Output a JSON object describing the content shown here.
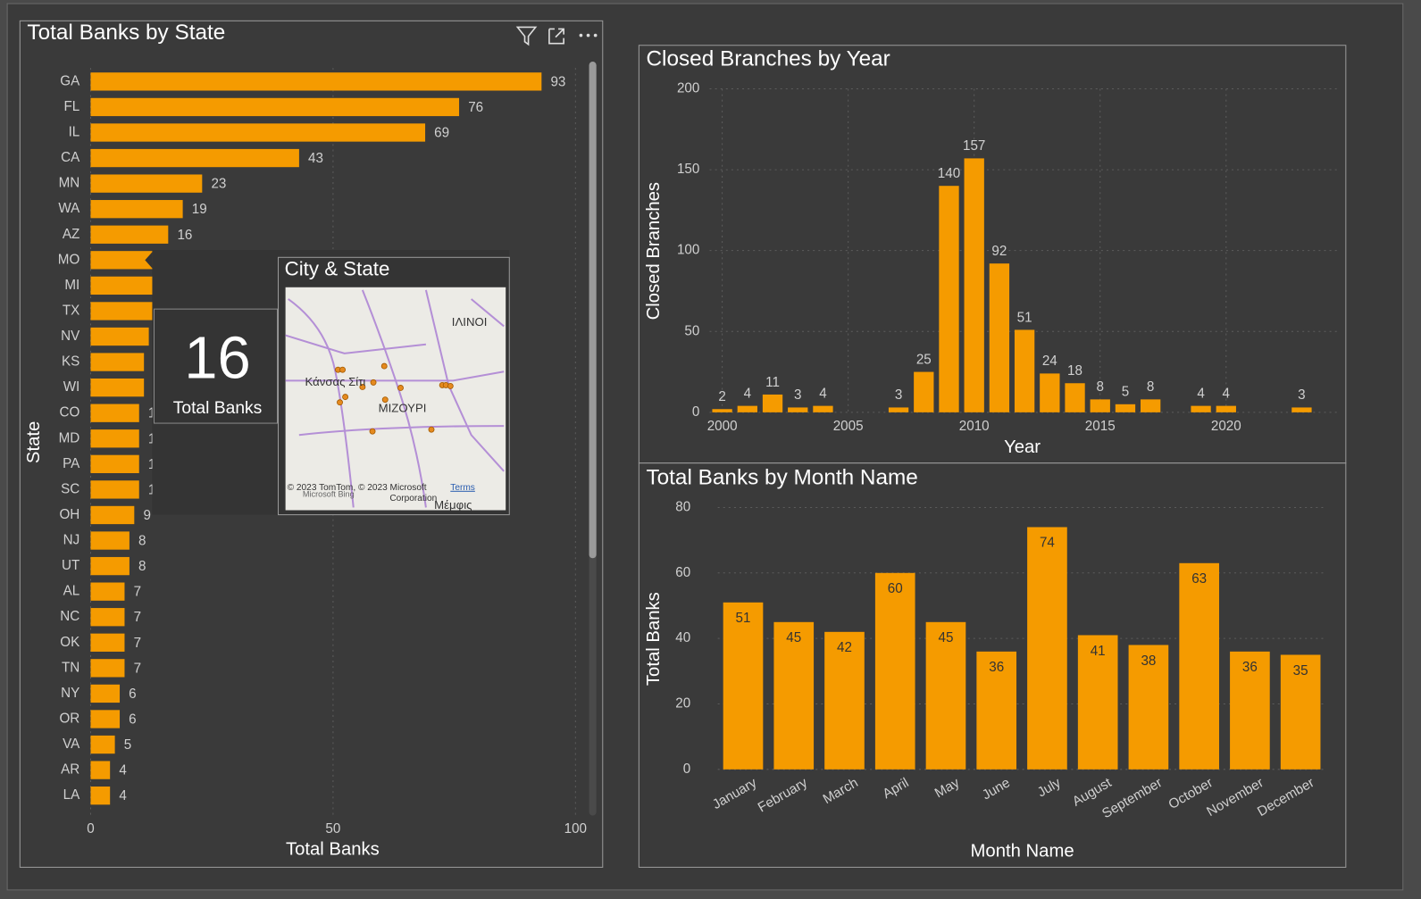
{
  "chart_data": [
    {
      "type": "bar",
      "orientation": "horizontal",
      "title": "Total Banks by State",
      "categories": [
        "GA",
        "FL",
        "IL",
        "CA",
        "MN",
        "WA",
        "AZ",
        "MO",
        "MI",
        "TX",
        "NV",
        "KS",
        "WI",
        "CO",
        "MD",
        "PA",
        "SC",
        "OH",
        "NJ",
        "UT",
        "AL",
        "NC",
        "OK",
        "TN",
        "NY",
        "OR",
        "VA",
        "AR",
        "LA"
      ],
      "values": [
        93,
        76,
        69,
        43,
        23,
        19,
        16,
        16,
        14,
        13,
        12,
        11,
        11,
        10,
        10,
        10,
        10,
        9,
        8,
        8,
        7,
        7,
        7,
        7,
        6,
        6,
        5,
        4,
        4
      ],
      "color": "#f59b00",
      "xlim": [
        0,
        100
      ],
      "xticks": [
        0,
        50,
        100
      ],
      "x_label": "Total Banks",
      "y_label": "State",
      "grid": true
    },
    {
      "type": "bar",
      "title": "Closed Branches by Year",
      "x": [
        2000,
        2001,
        2002,
        2003,
        2004,
        2007,
        2008,
        2009,
        2010,
        2011,
        2012,
        2013,
        2014,
        2015,
        2016,
        2017,
        2019,
        2020,
        2023
      ],
      "values": [
        2,
        4,
        11,
        3,
        4,
        3,
        25,
        140,
        157,
        92,
        51,
        24,
        18,
        8,
        5,
        8,
        4,
        4,
        3
      ],
      "color": "#f59b00",
      "xlim": [
        1999.5,
        2024.5
      ],
      "xticks": [
        2000,
        2005,
        2010,
        2015,
        2020
      ],
      "ylim": [
        0,
        200
      ],
      "yticks": [
        0,
        50,
        100,
        150,
        200
      ],
      "x_label": "Year",
      "y_label": "Closed Branches",
      "grid": true
    },
    {
      "type": "bar",
      "title": "Total Banks by Month Name",
      "categories": [
        "January",
        "February",
        "March",
        "April",
        "May",
        "June",
        "July",
        "August",
        "September",
        "October",
        "November",
        "December"
      ],
      "values": [
        51,
        45,
        42,
        60,
        45,
        36,
        74,
        41,
        38,
        63,
        36,
        35
      ],
      "color": "#f59b00",
      "ylim": [
        0,
        80
      ],
      "yticks": [
        0,
        20,
        40,
        60,
        80
      ],
      "x_label": "Month Name",
      "y_label": "Total Banks",
      "grid": true
    }
  ],
  "tooltip": {
    "card_value": "16",
    "card_label": "Total Banks",
    "map_title": "City & State",
    "map_labels": [
      "ΙΛΙΝΟΙ",
      "Κάνσας Σίτι",
      "ΜΙΖΟΥΡΙ",
      "Μέμφις"
    ],
    "map_credit": "© 2023 TomTom, © 2023 Microsoft",
    "map_credit_2": "Corporation",
    "map_terms": "Terms",
    "map_brand": "Microsoft Bing"
  }
}
